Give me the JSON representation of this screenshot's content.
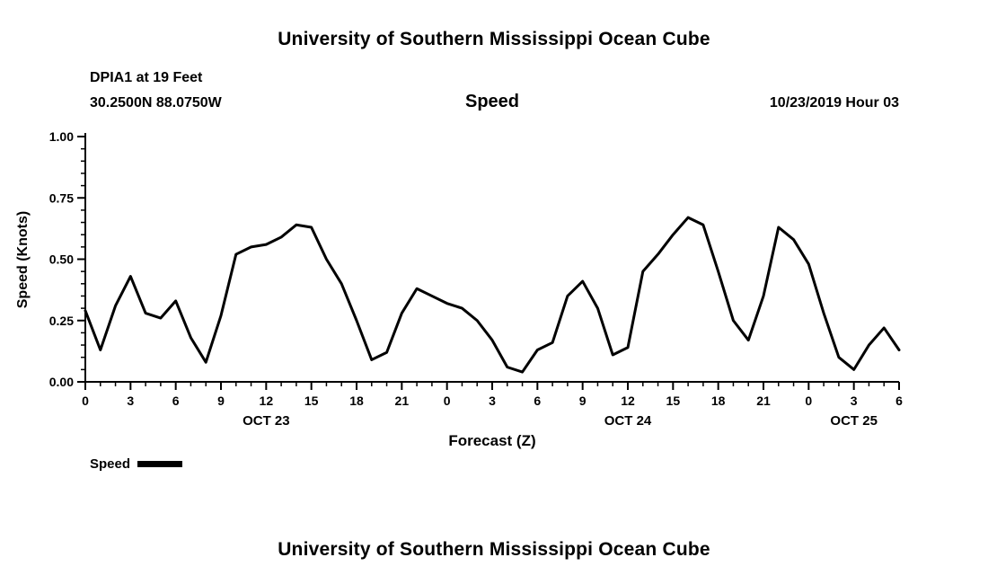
{
  "page": {
    "title_top": "University of Southern Mississippi Ocean Cube",
    "title_bottom": "University of Southern Mississippi Ocean Cube"
  },
  "header": {
    "station": "DPIA1 at 19 Feet",
    "coordinates": "30.2500N 88.0750W",
    "variable": "Speed",
    "datetime": "10/23/2019 Hour 03"
  },
  "legend": {
    "label": "Speed"
  },
  "chart_data": {
    "type": "line",
    "title": "Speed",
    "xlabel": "Forecast (Z)",
    "ylabel": "Speed (Knots)",
    "xlim": [
      0,
      54
    ],
    "ylim": [
      0.0,
      1.0
    ],
    "grid": false,
    "legend_position": "below-left",
    "line_color": "#000000",
    "axis_color": "#000000",
    "x_start": 0,
    "x_step": 1,
    "x_major_tick_hours": [
      0,
      3,
      6,
      9,
      12,
      15,
      18,
      21,
      24,
      27,
      30,
      33,
      36,
      39,
      42,
      45,
      48,
      51,
      54
    ],
    "x_tick_labels": [
      "0",
      "3",
      "6",
      "9",
      "12",
      "15",
      "18",
      "21",
      "0",
      "3",
      "6",
      "9",
      "12",
      "15",
      "18",
      "21",
      "0",
      "3",
      "6"
    ],
    "x_minor_step": 1,
    "y_ticks": [
      0.0,
      0.25,
      0.5,
      0.75,
      1.0
    ],
    "y_tick_labels": [
      "0.00",
      "0.25",
      "0.50",
      "0.75",
      "1.00"
    ],
    "y_minor_step": 0.05,
    "date_labels": [
      {
        "label": "OCT 23",
        "hour": 12
      },
      {
        "label": "OCT 24",
        "hour": 36
      },
      {
        "label": "OCT 25",
        "hour": 51
      }
    ],
    "series": [
      {
        "name": "Speed",
        "values": [
          0.29,
          0.13,
          0.31,
          0.43,
          0.28,
          0.26,
          0.33,
          0.18,
          0.08,
          0.27,
          0.52,
          0.55,
          0.56,
          0.59,
          0.64,
          0.63,
          0.5,
          0.4,
          0.25,
          0.09,
          0.12,
          0.28,
          0.38,
          0.35,
          0.32,
          0.3,
          0.25,
          0.17,
          0.06,
          0.04,
          0.13,
          0.16,
          0.35,
          0.41,
          0.3,
          0.11,
          0.14,
          0.45,
          0.52,
          0.6,
          0.67,
          0.64,
          0.45,
          0.25,
          0.17,
          0.35,
          0.63,
          0.58,
          0.48,
          0.28,
          0.1,
          0.05,
          0.15,
          0.22,
          0.13
        ]
      }
    ]
  }
}
